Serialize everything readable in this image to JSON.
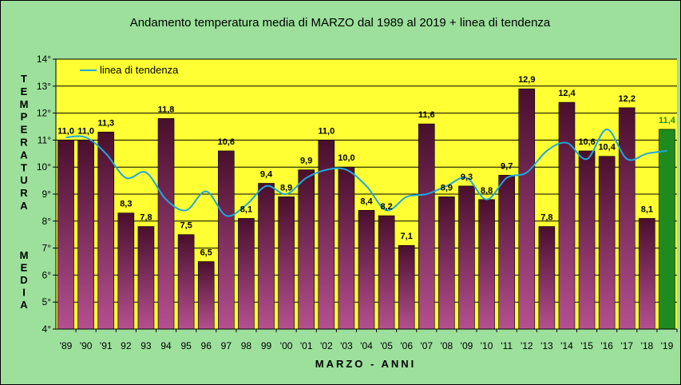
{
  "chart_data": {
    "type": "bar",
    "title": "Andamento temperatura media di MARZO dal 1989 al 2019 + linea di tendenza",
    "xlabel": "MARZO - ANNI",
    "ylabel_top": "TEMPERATURA",
    "ylabel_bottom": "MEDIA",
    "ylim": [
      4,
      14
    ],
    "y_ticks": [
      "4°",
      "5°",
      "6°",
      "7°",
      "8°",
      "9°",
      "10°",
      "11°",
      "12°",
      "13°",
      "14°"
    ],
    "y_tick_values": [
      4,
      5,
      6,
      7,
      8,
      9,
      10,
      11,
      12,
      13,
      14
    ],
    "categories": [
      "'89",
      "'90",
      "'91",
      "92",
      "93",
      "94",
      "95",
      "96",
      "97",
      "98",
      "99",
      "'00",
      "'01",
      "'02",
      "'03",
      "'04",
      "'05",
      "'06",
      "'07",
      "'08",
      "'09",
      "'10",
      "'11",
      "'12",
      "'13",
      "'14",
      "'15",
      "'16",
      "'17",
      "'18",
      "'19"
    ],
    "values": [
      11.0,
      11.0,
      11.3,
      8.3,
      7.8,
      11.8,
      7.5,
      6.5,
      10.6,
      8.1,
      9.4,
      8.9,
      9.9,
      11.0,
      10.0,
      8.4,
      8.2,
      7.1,
      11.6,
      8.9,
      9.3,
      8.8,
      9.7,
      12.9,
      7.8,
      12.4,
      10.6,
      10.4,
      12.2,
      8.1,
      11.4
    ],
    "value_labels": [
      "11,0",
      "11,0",
      "11,3",
      "8,3",
      "7,8",
      "11,8",
      "7,5",
      "6,5",
      "10,6",
      "8,1",
      "9,4",
      "8,9",
      "9,9",
      "11,0",
      "10,0",
      "8,4",
      "8,2",
      "7,1",
      "11,6",
      "8,9",
      "9,3",
      "8,8",
      "9,7",
      "12,9",
      "7,8",
      "12,4",
      "10,6",
      "10,4",
      "12,2",
      "8,1",
      "11,4"
    ],
    "trend": {
      "name": "linea di tendenza",
      "values": [
        11.1,
        11.1,
        10.5,
        9.6,
        9.8,
        8.8,
        8.4,
        9.1,
        8.2,
        8.6,
        9.3,
        9.0,
        9.6,
        9.9,
        9.9,
        9.3,
        8.4,
        8.9,
        9.0,
        9.3,
        9.6,
        8.8,
        9.6,
        9.8,
        10.6,
        10.9,
        10.3,
        11.4,
        10.3,
        10.5,
        10.6
      ]
    },
    "colors": {
      "plot_bg": "#ffff33",
      "outer_bg": "#9ce09c",
      "bar_top": "#4a0f2d",
      "bar_bottom": "#b4508f",
      "last_bar": "#1f8a1f",
      "last_label": "#1e8c1e",
      "trend": "#1fa8de"
    }
  }
}
